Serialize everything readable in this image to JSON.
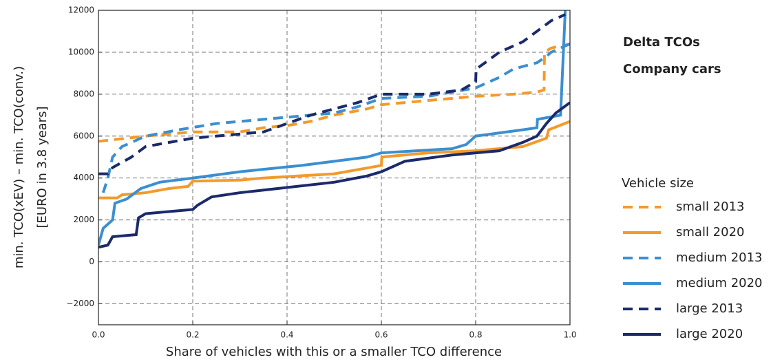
{
  "chart_data": {
    "type": "line",
    "title_lines": [
      "Delta TCOs",
      "Company cars"
    ],
    "xlabel": "Share of vehicles with this or a smaller TCO difference",
    "ylabel_lines": [
      "min. TCO(xEV) – min. TCO(conv.)",
      "[EURO in 3.8 years]"
    ],
    "legend_title": "Vehicle size",
    "legend": "right",
    "grid": true,
    "xlim": [
      0,
      1
    ],
    "ylim": [
      -3000,
      12000
    ],
    "xticks": [
      {
        "value": 0,
        "label": "0.0"
      },
      0.2,
      0.4,
      0.6,
      0.8,
      {
        "value": 1,
        "label": "1.0"
      }
    ],
    "yticks": [
      {
        "value": -2000,
        "label": "−2000"
      },
      0,
      2000,
      4000,
      6000,
      8000,
      10000,
      12000
    ],
    "series": [
      {
        "name": "small 2013",
        "color": "#f39a2a",
        "dashed": true,
        "x": [
          0,
          0.1,
          0.2,
          0.3,
          0.35,
          0.4,
          0.45,
          0.5,
          0.57,
          0.6,
          0.7,
          0.8,
          0.88,
          0.93,
          0.945,
          0.946,
          0.96,
          1.0
        ],
        "values": [
          5750,
          6000,
          6200,
          6200,
          6400,
          6500,
          6700,
          7000,
          7300,
          7500,
          7700,
          7900,
          8000,
          8100,
          8200,
          10000,
          10200,
          10400
        ]
      },
      {
        "name": "small 2020",
        "color": "#f39a2a",
        "dashed": false,
        "x": [
          0,
          0.04,
          0.05,
          0.1,
          0.15,
          0.19,
          0.2,
          0.3,
          0.35,
          0.5,
          0.6,
          0.601,
          0.7,
          0.8,
          0.9,
          0.95,
          0.955,
          1.0
        ],
        "values": [
          3050,
          3050,
          3200,
          3300,
          3500,
          3600,
          3850,
          3900,
          4000,
          4200,
          4600,
          5000,
          5200,
          5300,
          5500,
          5900,
          6300,
          6700
        ]
      },
      {
        "name": "medium 2013",
        "color": "#3b8fd0",
        "dashed": true,
        "x": [
          0.01,
          0.02,
          0.03,
          0.05,
          0.1,
          0.17,
          0.25,
          0.4,
          0.5,
          0.55,
          0.6,
          0.7,
          0.8,
          0.85,
          0.88,
          0.93,
          0.95,
          0.96,
          1.0
        ],
        "values": [
          3300,
          4000,
          5000,
          5500,
          6000,
          6300,
          6600,
          6900,
          7100,
          7400,
          7800,
          7900,
          8300,
          8800,
          9200,
          9500,
          9800,
          10000,
          10400
        ]
      },
      {
        "name": "medium 2020",
        "color": "#3b8fd0",
        "dashed": false,
        "x": [
          0,
          0.01,
          0.03,
          0.035,
          0.06,
          0.09,
          0.13,
          0.2,
          0.3,
          0.43,
          0.5,
          0.57,
          0.6,
          0.75,
          0.78,
          0.8,
          0.9,
          0.93,
          0.931,
          0.98,
          0.99
        ],
        "values": [
          800,
          1600,
          2000,
          2800,
          3000,
          3500,
          3800,
          4000,
          4300,
          4600,
          4800,
          5000,
          5200,
          5400,
          5600,
          6000,
          6300,
          6400,
          6800,
          7000,
          12000
        ]
      },
      {
        "name": "large 2013",
        "color": "#1b2a6b",
        "dashed": true,
        "x": [
          0,
          0.02,
          0.03,
          0.07,
          0.1,
          0.2,
          0.25,
          0.35,
          0.4,
          0.45,
          0.5,
          0.55,
          0.6,
          0.7,
          0.77,
          0.8,
          0.801,
          0.82,
          0.85,
          0.9,
          0.96,
          0.99
        ],
        "values": [
          4200,
          4200,
          4500,
          5000,
          5500,
          5900,
          6000,
          6200,
          6600,
          7000,
          7300,
          7600,
          8000,
          8000,
          8200,
          8600,
          9200,
          9500,
          10000,
          10500,
          11500,
          11800
        ]
      },
      {
        "name": "large 2020",
        "color": "#1b2a6b",
        "dashed": false,
        "x": [
          0,
          0.02,
          0.03,
          0.08,
          0.085,
          0.1,
          0.2,
          0.21,
          0.24,
          0.3,
          0.38,
          0.5,
          0.57,
          0.6,
          0.65,
          0.75,
          0.85,
          0.9,
          0.93,
          0.95,
          0.97,
          1.0
        ],
        "values": [
          700,
          800,
          1200,
          1300,
          2100,
          2300,
          2500,
          2700,
          3100,
          3300,
          3500,
          3800,
          4100,
          4300,
          4800,
          5100,
          5300,
          5700,
          6000,
          6600,
          7100,
          7600
        ]
      }
    ]
  }
}
